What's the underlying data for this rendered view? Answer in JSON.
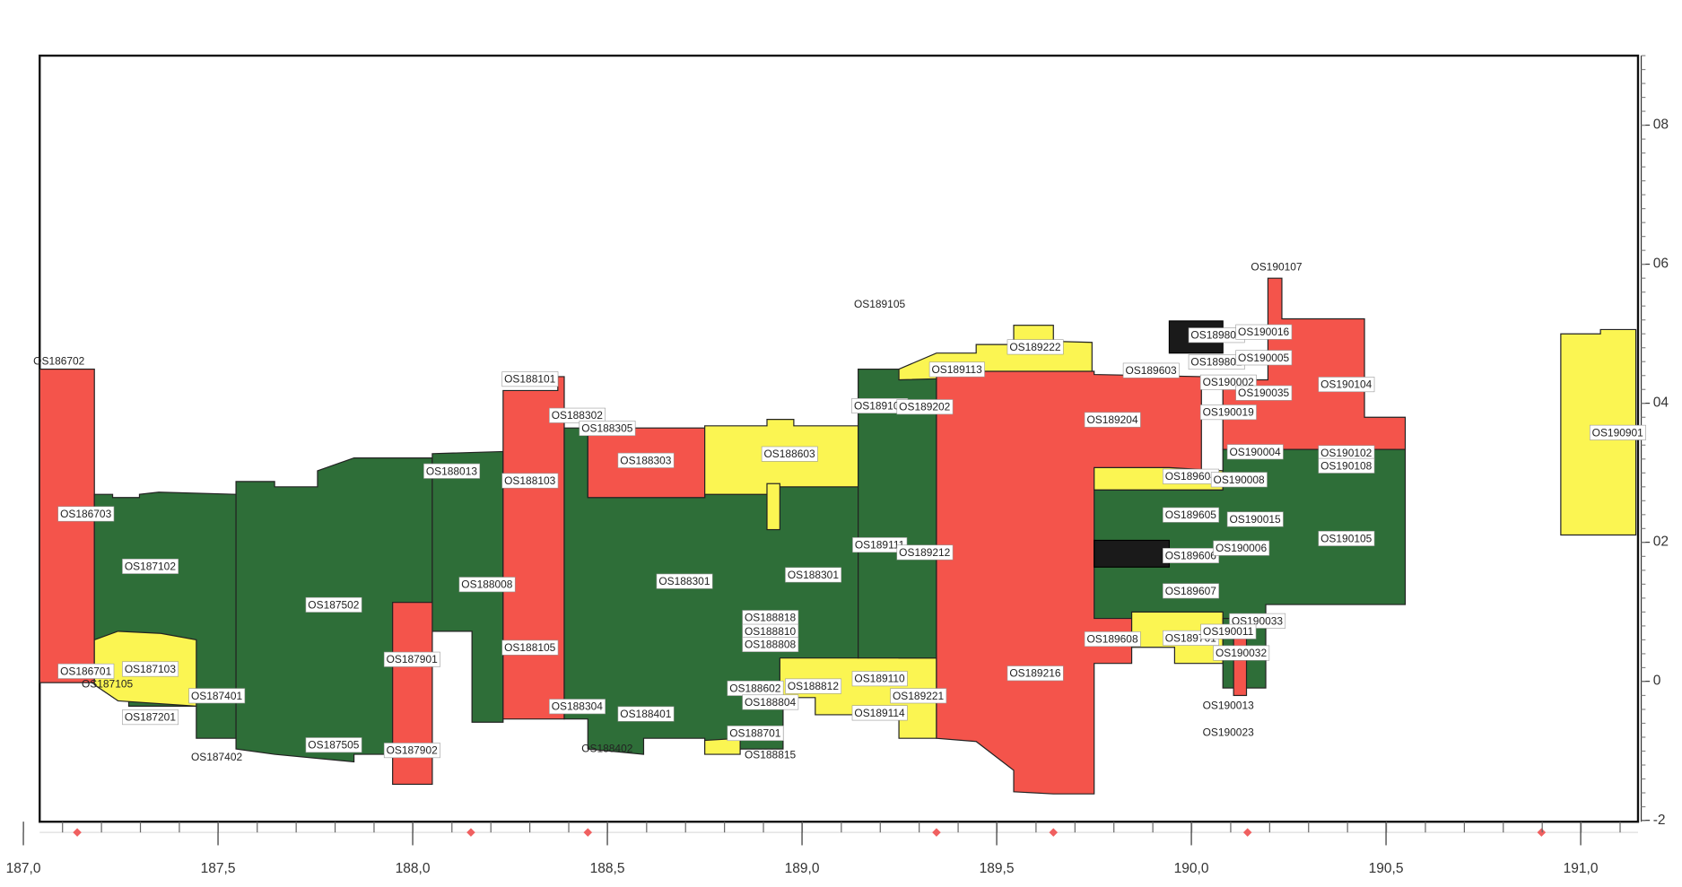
{
  "chart_data": {
    "type": "profile",
    "xlim": [
      186.94,
      191.15
    ],
    "xticks": [
      {
        "value": 187,
        "label": "187,0"
      },
      {
        "value": 187.5,
        "label": "187,5"
      },
      {
        "value": 188,
        "label": "188,0"
      },
      {
        "value": 188.5,
        "label": "188,5"
      },
      {
        "value": 189,
        "label": "189,0"
      },
      {
        "value": 189.5,
        "label": "189,5"
      },
      {
        "value": 190,
        "label": "190,0"
      },
      {
        "value": 190.5,
        "label": "190,5"
      },
      {
        "value": 191,
        "label": "191,0"
      }
    ],
    "y2lim": [
      -2.02,
      9
    ],
    "y2ticks": [
      -2,
      0,
      {
        "value": 2,
        "label": "02"
      },
      {
        "value": 4,
        "label": "04"
      },
      {
        "value": 6,
        "label": "06"
      },
      {
        "value": 8,
        "label": "08"
      }
    ],
    "annotations": [
      "OS186702",
      "OS186703",
      "OS187102",
      "OS187502",
      "OS186701",
      "OS187103",
      "OS187105",
      "OS187201",
      "OS187401",
      "OS187402",
      "OS187505",
      "OS187901",
      "OS187902",
      "OS188013",
      "OS188008",
      "OS188101",
      "OS188103",
      "OS188105",
      "OS188302",
      "OS188305",
      "OS188303",
      "OS188301",
      "OS188304",
      "OS188401",
      "OS188402",
      "OS188603",
      "OS188301",
      "OS188818",
      "OS188810",
      "OS188808",
      "OS188602",
      "OS188812",
      "OS188804",
      "OS188701",
      "OS188815",
      "OS189105",
      "OS189108",
      "OS189202",
      "OS189113",
      "OS189222",
      "OS189111",
      "OS189212",
      "OS189110",
      "OS189221",
      "OS189114",
      "OS189204",
      "OS189216",
      "OS189603",
      "OS189604",
      "OS189605",
      "OS189606",
      "OS189607",
      "OS189608",
      "OS189701",
      "OS189802",
      "OS189801",
      "OS190107",
      "OS190016",
      "OS190005",
      "OS190002",
      "OS190035",
      "OS190019",
      "OS190104",
      "OS190004",
      "OS190008",
      "OS190102",
      "OS190108",
      "OS190015",
      "OS190006",
      "OS190105",
      "OS190033",
      "OS190011",
      "OS190032",
      "OS190013",
      "OS190023",
      "OS190901"
    ]
  }
}
